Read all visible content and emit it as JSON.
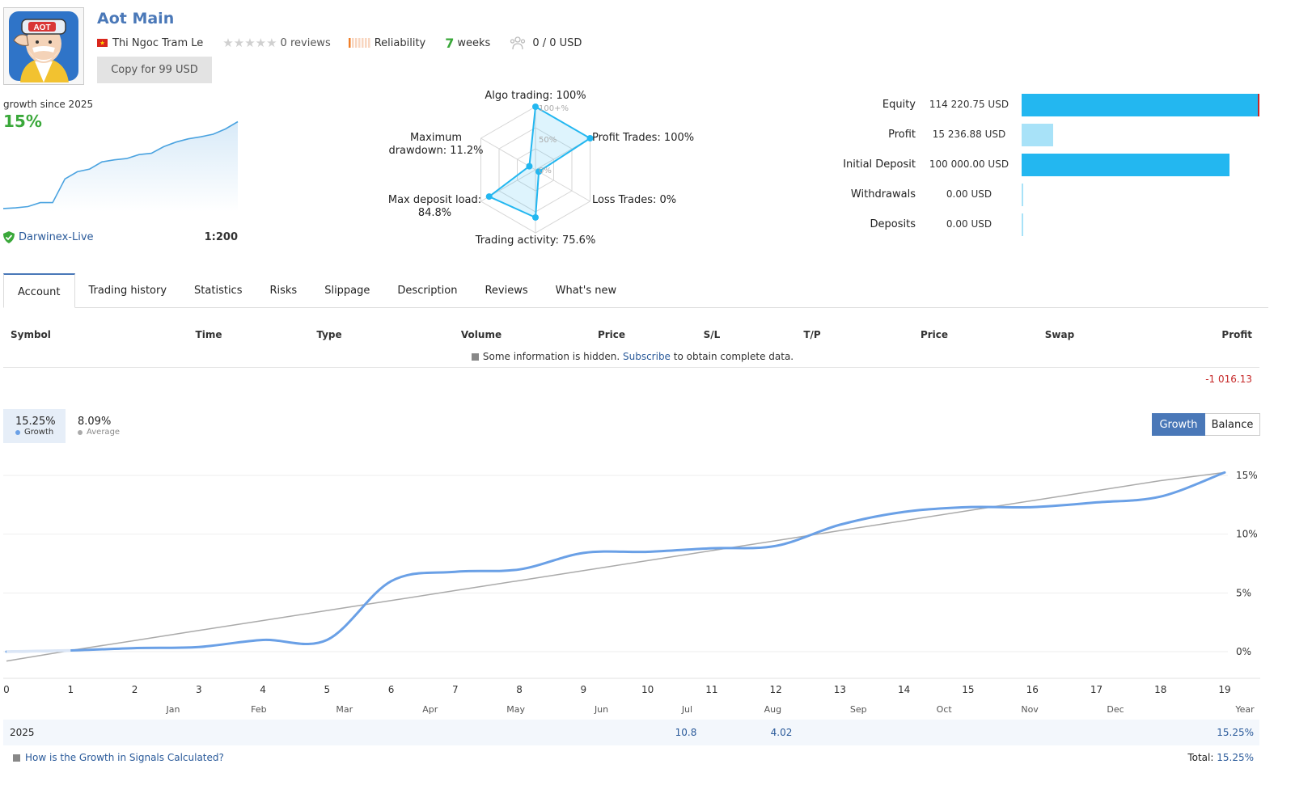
{
  "header": {
    "title": "Aot Main",
    "author": "Thi Ngoc Tram Le",
    "reviews": "0 reviews",
    "reliability_label": "Reliability",
    "weeks_value": "7",
    "weeks_label": "weeks",
    "subscribers": "0 / 0 USD",
    "copy_button": "Copy for 99 USD",
    "avatar_text": "AOT"
  },
  "summary": {
    "growth_label": "growth since 2025",
    "growth_value": "15%",
    "broker": "Darwinex-Live",
    "leverage": "1:200",
    "mini_chart": [
      0.0,
      0.1,
      0.3,
      0.9,
      0.9,
      4.5,
      5.6,
      6.0,
      7.1,
      7.4,
      7.6,
      8.2,
      8.4,
      9.4,
      10.1,
      10.6,
      10.9,
      11.3,
      12.1,
      13.2
    ]
  },
  "radar": {
    "labels": {
      "algo": "Algo trading: 100%",
      "profit": "Profit Trades: 100%",
      "loss": "Loss Trades: 0%",
      "activity": "Trading activity: 75.6%",
      "load_line1": "Max deposit load:",
      "load_line2": "84.8%",
      "dd_line1": "Maximum",
      "dd_line2": "drawdown: 11.2%"
    },
    "scale": {
      "top": "100+%",
      "mid": "50%",
      "zero": "0%"
    },
    "values": [
      100,
      100,
      0,
      75.6,
      84.8,
      11.2
    ]
  },
  "balances": [
    {
      "label": "Equity",
      "value": "114 220.75 USD",
      "amount": 114220.75
    },
    {
      "label": "Profit",
      "value": "15 236.88 USD",
      "amount": 15236.88
    },
    {
      "label": "Initial Deposit",
      "value": "100 000.00 USD",
      "amount": 100000.0
    },
    {
      "label": "Withdrawals",
      "value": "0.00 USD",
      "amount": 0
    },
    {
      "label": "Deposits",
      "value": "0.00 USD",
      "amount": 0
    }
  ],
  "tabs": [
    "Account",
    "Trading history",
    "Statistics",
    "Risks",
    "Slippage",
    "Description",
    "Reviews",
    "What's new"
  ],
  "table": {
    "headers": [
      "Symbol",
      "Time",
      "Type",
      "Volume",
      "Price",
      "S/L",
      "T/P",
      "Price",
      "Swap",
      "Profit"
    ],
    "hidden_before": "Some information is hidden.",
    "hidden_link": "Subscribe",
    "hidden_after": "to obtain complete data.",
    "total_profit": "-1 016.13"
  },
  "growth_panel": {
    "growth_value": "15.25%",
    "growth_label": "Growth",
    "average_value": "8.09%",
    "average_label": "Average",
    "btn_growth": "Growth",
    "btn_balance": "Balance"
  },
  "chart_data": {
    "type": "line",
    "x": [
      0,
      1,
      2,
      3,
      4,
      5,
      6,
      7,
      8,
      9,
      10,
      11,
      12,
      13,
      14,
      15,
      16,
      17,
      18,
      19
    ],
    "series": [
      {
        "name": "Growth",
        "values": [
          0,
          0.1,
          0.3,
          0.4,
          1.0,
          1.0,
          6.0,
          6.8,
          7.0,
          8.4,
          8.5,
          8.8,
          9.0,
          10.8,
          11.9,
          12.3,
          12.3,
          12.7,
          13.2,
          15.25
        ]
      },
      {
        "name": "Average",
        "values": [
          -0.8,
          0.1,
          0.95,
          1.8,
          2.65,
          3.5,
          4.35,
          5.2,
          6.05,
          6.9,
          7.75,
          8.6,
          9.45,
          10.3,
          11.15,
          12.0,
          12.85,
          13.7,
          14.55,
          15.25
        ]
      }
    ],
    "ylim": [
      -1.5,
      15.5
    ],
    "y_ticks": [
      "15%",
      "10%",
      "5%",
      "0%"
    ],
    "x_ticks": [
      "0",
      "1",
      "2",
      "3",
      "4",
      "5",
      "6",
      "7",
      "8",
      "9",
      "10",
      "11",
      "12",
      "13",
      "14",
      "15",
      "16",
      "17",
      "18",
      "19"
    ],
    "months": [
      "Jan",
      "Feb",
      "Mar",
      "Apr",
      "May",
      "Jun",
      "Jul",
      "Aug",
      "Sep",
      "Oct",
      "Nov",
      "Dec",
      "Year"
    ],
    "colors": {
      "growth": "#6aa0e6",
      "average": "#aaaaaa",
      "grid": "#eeeeee"
    }
  },
  "yearly": {
    "year": "2025",
    "jul": "10.8",
    "aug": "4.02",
    "year_total": "15.25%",
    "link": "How is the Growth in Signals Calculated?",
    "total_label": "Total:",
    "total_value": "15.25%"
  },
  "colors": {
    "accent": "#4a78b8",
    "green": "#3aa83a",
    "bar": "#23b7f0",
    "bar_light": "#a8e2f8",
    "negative": "#c62828"
  }
}
